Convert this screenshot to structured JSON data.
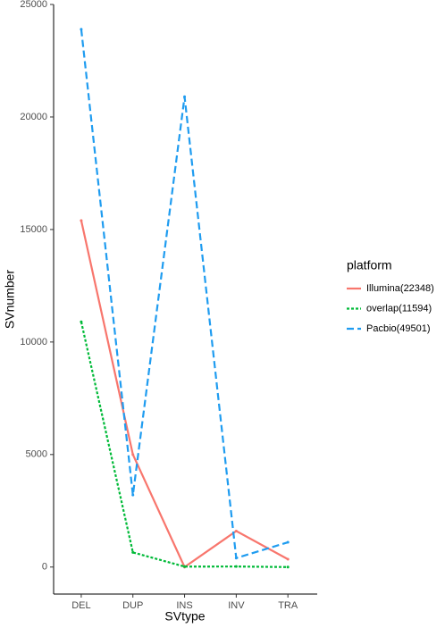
{
  "chart_data": {
    "type": "line",
    "x_label": "SVtype",
    "y_label": "SVnumber",
    "categories": [
      "DEL",
      "DUP",
      "INS",
      "INV",
      "TRA"
    ],
    "series": [
      {
        "name": "Illumina(22348)",
        "color": "#f8766d",
        "dash": "solid",
        "values": [
          15400,
          5000,
          0,
          1600,
          348
        ]
      },
      {
        "name": "overlap(11594)",
        "color": "#00ba38",
        "dash": "dotted",
        "values": [
          10900,
          650,
          20,
          24,
          0
        ]
      },
      {
        "name": "Pacbio(49501)",
        "color": "#1f9cf0",
        "dash": "dashed",
        "values": [
          23900,
          3200,
          20900,
          400,
          1101
        ]
      }
    ],
    "ylim": [
      -1200,
      25000
    ],
    "yticks": [
      0,
      5000,
      10000,
      15000,
      20000,
      25000
    ],
    "legend_title": "platform",
    "legend_position": "right"
  }
}
